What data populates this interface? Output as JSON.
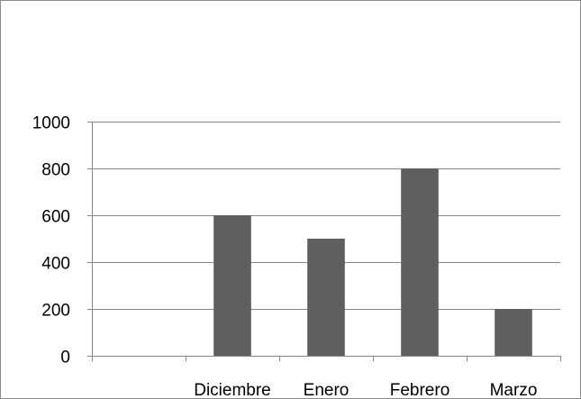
{
  "chart_data": {
    "type": "bar",
    "title": "",
    "xlabel": "",
    "ylabel": "",
    "categories": [
      "",
      "Diciembre",
      "Enero",
      "Febrero",
      "Marzo"
    ],
    "values": [
      null,
      600,
      500,
      800,
      200
    ],
    "ylim": [
      0,
      1000
    ],
    "yticks": [
      0,
      200,
      400,
      600,
      800,
      1000
    ],
    "grid": true,
    "legend": "none",
    "bar_color": "#5f5f5f",
    "grid_color": "#868686"
  }
}
